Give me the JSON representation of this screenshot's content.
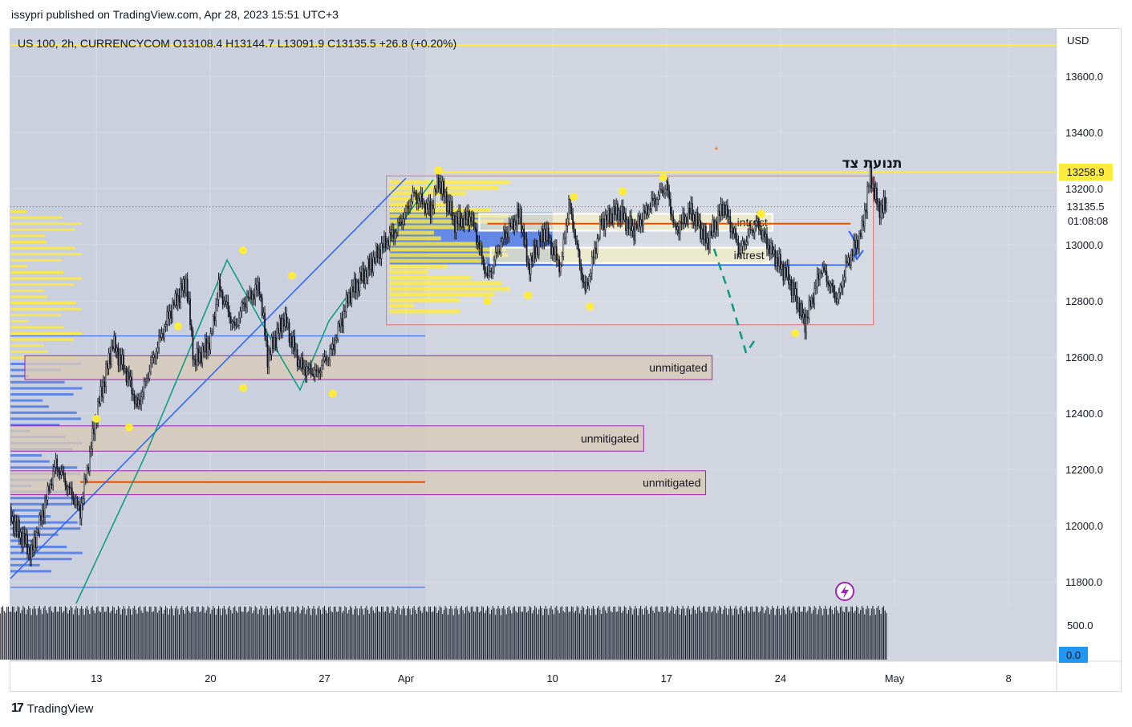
{
  "header": {
    "published_by": "issypri published on TradingView.com, Apr 28, 2023 15:51 UTC+3"
  },
  "legend": {
    "symbol_line": "US 100, 2h, CURRENCYCOM  O13108.4  H13144.7  L13091.9  C13135.5  +26.8 (+0.20%)"
  },
  "footer": {
    "brand": "TradingView",
    "brand_mark": "17"
  },
  "colors": {
    "background": "#d1d5e0",
    "grid": "#e0e3eb",
    "candle": "#131722",
    "blue_line": "#2962ff",
    "teal_line": "#089981",
    "yellow": "#ffeb3b",
    "zone_fill": "#d8c9b8",
    "zone_border": "#9c27b0",
    "range_border": "#e57373",
    "price_label_bg": "#ffeb3b"
  },
  "chart_data": {
    "type": "candlestick",
    "symbol": "US 100",
    "interval": "2h",
    "source": "CURRENCYCOM",
    "ohlc_last": {
      "open": 13108.4,
      "high": 13144.7,
      "low": 13091.9,
      "close": 13135.5,
      "change": 26.8,
      "change_pct": 0.2
    },
    "currency": "USD",
    "y_axis": {
      "ticks": [
        13600.0,
        13400.0,
        13200.0,
        13000.0,
        12800.0,
        12600.0,
        12400.0,
        12200.0,
        12000.0,
        11800.0
      ],
      "tick_labels": [
        "13600.0",
        "13400.0",
        "13200.0",
        "13000.0",
        "12800.0",
        "12600.0",
        "12400.0",
        "12200.0",
        "12000.0",
        "11800.0"
      ],
      "range": [
        11700,
        13740
      ]
    },
    "volume_axis": {
      "ticks": [
        "500.0"
      ],
      "last_volume": "0.0"
    },
    "x_axis": {
      "tick_labels": [
        "13",
        "20",
        "27",
        "Apr",
        "10",
        "17",
        "24",
        "May",
        "8"
      ],
      "tick_days": [
        -19,
        -12,
        -5,
        0,
        9,
        16,
        23,
        30,
        37
      ]
    },
    "price_labels": [
      {
        "text": "13258.9",
        "value": 13258.9,
        "style": "yellow"
      },
      {
        "text": "13135.5",
        "value": 13135.5,
        "style": "current"
      },
      {
        "text": "01:08:08",
        "value": 13135.5,
        "style": "countdown"
      }
    ],
    "annotations": [
      {
        "text": "תנועת צד",
        "kind": "text"
      },
      {
        "text": "intrest",
        "low": 13050,
        "high": 13110,
        "start_day": 4.5,
        "end_day": 22.5
      },
      {
        "text": "intrest",
        "low": 12935,
        "high": 12990,
        "start_day": 5.2,
        "end_day": 22.3
      },
      {
        "text": "unmitigated",
        "low": 12520,
        "high": 12605,
        "start_day": -23.4,
        "end_day": 18.8
      },
      {
        "text": "unmitigated",
        "low": 12265,
        "high": 12355,
        "start_day": -28.6,
        "end_day": 14.6
      },
      {
        "text": "unmitigated",
        "low": 12110,
        "high": 12195,
        "start_day": -24.5,
        "end_day": 18.4
      }
    ],
    "range_box": {
      "low": 12715,
      "high": 13245,
      "start_day": -1.2,
      "end_day": 28.7
    },
    "horizontal_levels": [
      13258.9,
      12675,
      11780
    ],
    "swing_points": [
      {
        "day": -19,
        "value": 12380
      },
      {
        "day": -17,
        "value": 12350
      },
      {
        "day": -14,
        "value": 12710
      },
      {
        "day": -10,
        "value": 12980
      },
      {
        "day": -10,
        "value": 12490
      },
      {
        "day": -7,
        "value": 12890
      },
      {
        "day": -4.5,
        "value": 12470
      },
      {
        "day": 2,
        "value": 13265
      },
      {
        "day": 5,
        "value": 12800
      },
      {
        "day": 7.5,
        "value": 12820
      },
      {
        "day": 10.3,
        "value": 13170
      },
      {
        "day": 11.3,
        "value": 12780
      },
      {
        "day": 13.3,
        "value": 13190
      },
      {
        "day": 15.8,
        "value": 13240
      },
      {
        "day": 21.8,
        "value": 13110
      },
      {
        "day": 23.9,
        "value": 12685
      }
    ],
    "price_path": [
      [
        -28.5,
        12150
      ],
      [
        -27.5,
        12250
      ],
      [
        -26.5,
        11950
      ],
      [
        -25.7,
        11790
      ],
      [
        -24.5,
        12050
      ],
      [
        -23,
        11900
      ],
      [
        -21.5,
        12220
      ],
      [
        -20,
        12050
      ],
      [
        -19,
        12400
      ],
      [
        -18,
        12650
      ],
      [
        -17,
        12520
      ],
      [
        -16.5,
        12420
      ],
      [
        -15.5,
        12600
      ],
      [
        -14.5,
        12760
      ],
      [
        -13.5,
        12870
      ],
      [
        -13,
        12580
      ],
      [
        -12,
        12660
      ],
      [
        -11.5,
        12850
      ],
      [
        -10.5,
        12700
      ],
      [
        -10,
        12790
      ],
      [
        -9,
        12850
      ],
      [
        -8.5,
        12600
      ],
      [
        -7.5,
        12740
      ],
      [
        -6.5,
        12570
      ],
      [
        -5.5,
        12540
      ],
      [
        -4.5,
        12630
      ],
      [
        -3.5,
        12820
      ],
      [
        -2.5,
        12900
      ],
      [
        -1.5,
        12990
      ],
      [
        -0.5,
        13060
      ],
      [
        0.5,
        13180
      ],
      [
        1.5,
        13120
      ],
      [
        2,
        13230
      ],
      [
        3,
        13080
      ],
      [
        4,
        13100
      ],
      [
        5,
        12880
      ],
      [
        6,
        13030
      ],
      [
        7,
        13110
      ],
      [
        7.5,
        12920
      ],
      [
        8.5,
        13050
      ],
      [
        9.5,
        12920
      ],
      [
        10,
        13150
      ],
      [
        11,
        12830
      ],
      [
        12,
        13080
      ],
      [
        13,
        13120
      ],
      [
        14,
        13050
      ],
      [
        15,
        13140
      ],
      [
        16,
        13210
      ],
      [
        16.5,
        13050
      ],
      [
        17.5,
        13120
      ],
      [
        18.5,
        13010
      ],
      [
        19.5,
        13140
      ],
      [
        20.5,
        12980
      ],
      [
        21.5,
        13080
      ],
      [
        22.5,
        12970
      ],
      [
        23.5,
        12880
      ],
      [
        24.5,
        12720
      ],
      [
        25.5,
        12920
      ],
      [
        26.5,
        12800
      ],
      [
        27,
        12920
      ],
      [
        28,
        13050
      ],
      [
        28.5,
        13250
      ],
      [
        29,
        13130
      ],
      [
        29.5,
        13135.5
      ]
    ]
  }
}
